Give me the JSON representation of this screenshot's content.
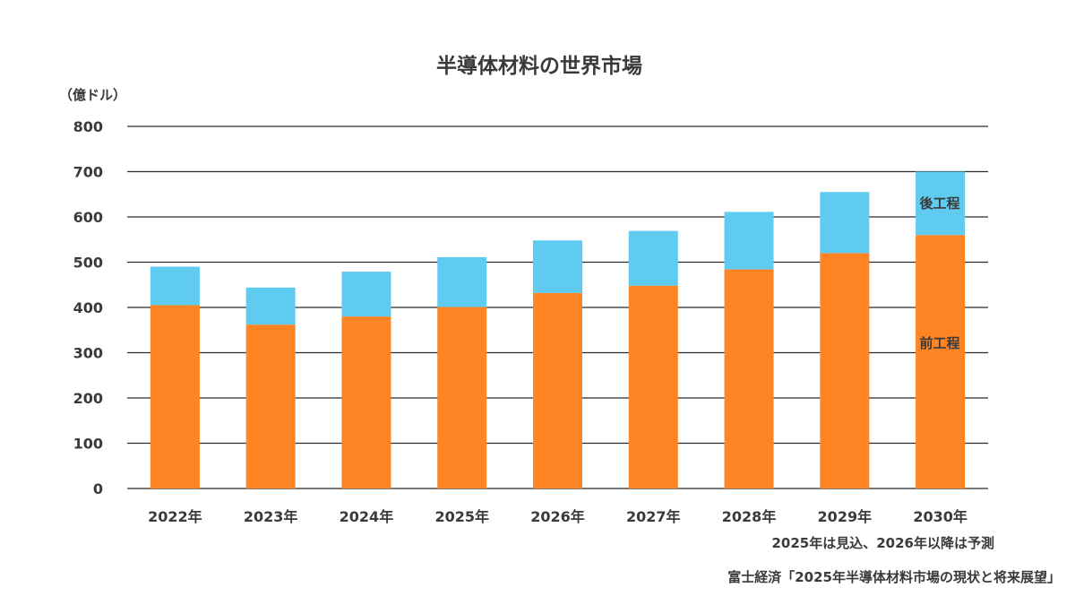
{
  "chart_data": {
    "type": "bar",
    "stacked": true,
    "title": "半導体材料の世界市場",
    "ylabel": "（億ドル）",
    "xlabel": "",
    "ylim": [
      0,
      800
    ],
    "yticks": [
      "0",
      "100",
      "200",
      "300",
      "400",
      "500",
      "600",
      "700",
      "800"
    ],
    "grid": true,
    "categories": [
      "2022年",
      "2023年",
      "2024年",
      "2025年",
      "2026年",
      "2027年",
      "2028年",
      "2029年",
      "2030年"
    ],
    "series": [
      {
        "name": "前工程",
        "color": "#ff8424",
        "values": [
          405,
          362,
          380,
          401,
          432,
          448,
          484,
          520,
          560
        ]
      },
      {
        "name": "後工程",
        "color": "#5fcbf1",
        "values": [
          85,
          82,
          99,
          110,
          116,
          121,
          127,
          135,
          140
        ]
      }
    ],
    "notes": [
      "2025年は見込、2026年以降は予測",
      "富士経済「2025年半導体材料市場の現状と将来展望」"
    ]
  }
}
